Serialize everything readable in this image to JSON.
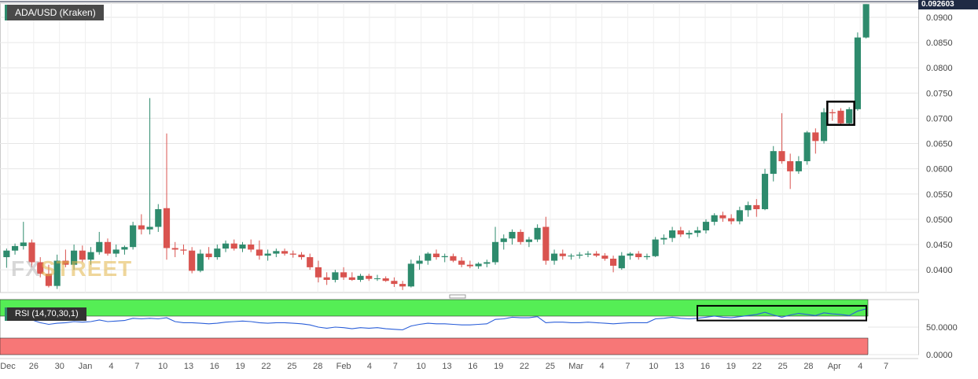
{
  "header": {
    "title": "ADA/USD (Kraken)",
    "last_price": "0.092603"
  },
  "watermark": {
    "part1": "FX",
    "part2": "STREET"
  },
  "rsi": {
    "label": "RSI (14,70,30,1)",
    "ticks": [
      "50.0000",
      "0.0000"
    ]
  },
  "colors": {
    "up": "#2e8b6d",
    "down": "#d9534f",
    "rsi_line": "#2b5fd9",
    "overbought": "#55ee55",
    "oversold": "#f77777",
    "last_price_tag": "#1f2a44"
  },
  "chart_data": [
    {
      "type": "candlestick",
      "title": "ADA/USD (Kraken)",
      "y_ticks": [
        "0.0900",
        "0.0850",
        "0.0800",
        "0.0750",
        "0.0700",
        "0.0650",
        "0.0600",
        "0.0550",
        "0.0500",
        "0.0450",
        "0.0400"
      ],
      "ylim": [
        0.0355,
        0.0928
      ],
      "x_tick_labels": [
        "Dec",
        "26",
        "30",
        "Jan",
        "4",
        "7",
        "10",
        "13",
        "16",
        "19",
        "22",
        "25",
        "28",
        "Feb",
        "4",
        "7",
        "10",
        "13",
        "16",
        "19",
        "22",
        "25",
        "Mar",
        "4",
        "7",
        "10",
        "13",
        "16",
        "19",
        "22",
        "25",
        "28",
        "Apr",
        "4",
        "7"
      ],
      "grid": true,
      "annotation": "box around consolidation candles near 0.0700",
      "candles": [
        {
          "date": "Dec 22",
          "o": 0.0425,
          "h": 0.0442,
          "l": 0.0404,
          "c": 0.0438
        },
        {
          "date": "Dec 23",
          "o": 0.0438,
          "h": 0.0452,
          "l": 0.043,
          "c": 0.0447
        },
        {
          "date": "Dec 24",
          "o": 0.0447,
          "h": 0.0495,
          "l": 0.044,
          "c": 0.0454
        },
        {
          "date": "Dec 25",
          "o": 0.0454,
          "h": 0.046,
          "l": 0.0405,
          "c": 0.0415
        },
        {
          "date": "Dec 26",
          "o": 0.0415,
          "h": 0.0425,
          "l": 0.0385,
          "c": 0.0392
        },
        {
          "date": "Dec 27",
          "o": 0.0392,
          "h": 0.041,
          "l": 0.0365,
          "c": 0.0368
        },
        {
          "date": "Dec 28",
          "o": 0.0368,
          "h": 0.043,
          "l": 0.0362,
          "c": 0.0418
        },
        {
          "date": "Dec 29",
          "o": 0.0418,
          "h": 0.044,
          "l": 0.0405,
          "c": 0.041
        },
        {
          "date": "Dec 30",
          "o": 0.041,
          "h": 0.045,
          "l": 0.04,
          "c": 0.0438
        },
        {
          "date": "Dec 31",
          "o": 0.0438,
          "h": 0.0448,
          "l": 0.0415,
          "c": 0.042
        },
        {
          "date": "Jan 1",
          "o": 0.042,
          "h": 0.0445,
          "l": 0.041,
          "c": 0.0435
        },
        {
          "date": "Jan 2",
          "o": 0.0435,
          "h": 0.0475,
          "l": 0.043,
          "c": 0.0455
        },
        {
          "date": "Jan 3",
          "o": 0.0455,
          "h": 0.0462,
          "l": 0.0428,
          "c": 0.0432
        },
        {
          "date": "Jan 4",
          "o": 0.0432,
          "h": 0.045,
          "l": 0.0425,
          "c": 0.044
        },
        {
          "date": "Jan 5",
          "o": 0.044,
          "h": 0.0448,
          "l": 0.043,
          "c": 0.0445
        },
        {
          "date": "Jan 6",
          "o": 0.0445,
          "h": 0.0495,
          "l": 0.044,
          "c": 0.0488
        },
        {
          "date": "Jan 7",
          "o": 0.0488,
          "h": 0.051,
          "l": 0.047,
          "c": 0.048
        },
        {
          "date": "Jan 8",
          "o": 0.048,
          "h": 0.074,
          "l": 0.047,
          "c": 0.0485
        },
        {
          "date": "Jan 9",
          "o": 0.0485,
          "h": 0.053,
          "l": 0.0475,
          "c": 0.052
        },
        {
          "date": "Jan 10",
          "o": 0.0522,
          "h": 0.067,
          "l": 0.042,
          "c": 0.0443
        },
        {
          "date": "Jan 11",
          "o": 0.0443,
          "h": 0.0455,
          "l": 0.0425,
          "c": 0.044
        },
        {
          "date": "Jan 12",
          "o": 0.044,
          "h": 0.045,
          "l": 0.043,
          "c": 0.0438
        },
        {
          "date": "Jan 13",
          "o": 0.0438,
          "h": 0.0445,
          "l": 0.0393,
          "c": 0.0398
        },
        {
          "date": "Jan 14",
          "o": 0.0398,
          "h": 0.044,
          "l": 0.0395,
          "c": 0.0432
        },
        {
          "date": "Jan 15",
          "o": 0.0432,
          "h": 0.0445,
          "l": 0.042,
          "c": 0.0425
        },
        {
          "date": "Jan 16",
          "o": 0.0425,
          "h": 0.045,
          "l": 0.042,
          "c": 0.0442
        },
        {
          "date": "Jan 17",
          "o": 0.0442,
          "h": 0.0458,
          "l": 0.0435,
          "c": 0.0452
        },
        {
          "date": "Jan 18",
          "o": 0.0452,
          "h": 0.046,
          "l": 0.0438,
          "c": 0.0442
        },
        {
          "date": "Jan 19",
          "o": 0.0442,
          "h": 0.0455,
          "l": 0.0435,
          "c": 0.045
        },
        {
          "date": "Jan 20",
          "o": 0.045,
          "h": 0.046,
          "l": 0.0435,
          "c": 0.044
        },
        {
          "date": "Jan 21",
          "o": 0.044,
          "h": 0.0458,
          "l": 0.042,
          "c": 0.0428
        },
        {
          "date": "Jan 22",
          "o": 0.0428,
          "h": 0.044,
          "l": 0.0418,
          "c": 0.0432
        },
        {
          "date": "Jan 23",
          "o": 0.0432,
          "h": 0.0442,
          "l": 0.0425,
          "c": 0.0437
        },
        {
          "date": "Jan 24",
          "o": 0.0437,
          "h": 0.0442,
          "l": 0.0428,
          "c": 0.0432
        },
        {
          "date": "Jan 25",
          "o": 0.0432,
          "h": 0.0438,
          "l": 0.0424,
          "c": 0.043
        },
        {
          "date": "Jan 26",
          "o": 0.043,
          "h": 0.0435,
          "l": 0.042,
          "c": 0.0425
        },
        {
          "date": "Jan 27",
          "o": 0.0425,
          "h": 0.0432,
          "l": 0.04,
          "c": 0.0405
        },
        {
          "date": "Jan 28",
          "o": 0.0405,
          "h": 0.0418,
          "l": 0.0375,
          "c": 0.0385
        },
        {
          "date": "Jan 29",
          "o": 0.0385,
          "h": 0.0395,
          "l": 0.037,
          "c": 0.038
        },
        {
          "date": "Jan 30",
          "o": 0.038,
          "h": 0.04,
          "l": 0.0375,
          "c": 0.0395
        },
        {
          "date": "Jan 31",
          "o": 0.0395,
          "h": 0.0405,
          "l": 0.038,
          "c": 0.0385
        },
        {
          "date": "Feb 1",
          "o": 0.0385,
          "h": 0.0395,
          "l": 0.0378,
          "c": 0.038
        },
        {
          "date": "Feb 2",
          "o": 0.038,
          "h": 0.0392,
          "l": 0.0376,
          "c": 0.0388
        },
        {
          "date": "Feb 3",
          "o": 0.0388,
          "h": 0.0392,
          "l": 0.0378,
          "c": 0.0382
        },
        {
          "date": "Feb 4",
          "o": 0.0382,
          "h": 0.039,
          "l": 0.0378,
          "c": 0.0383
        },
        {
          "date": "Feb 5",
          "o": 0.0383,
          "h": 0.0387,
          "l": 0.0376,
          "c": 0.0378
        },
        {
          "date": "Feb 6",
          "o": 0.0378,
          "h": 0.0385,
          "l": 0.0366,
          "c": 0.0372
        },
        {
          "date": "Feb 7",
          "o": 0.0372,
          "h": 0.0378,
          "l": 0.036,
          "c": 0.0367
        },
        {
          "date": "Feb 8",
          "o": 0.0367,
          "h": 0.042,
          "l": 0.0365,
          "c": 0.0412
        },
        {
          "date": "Feb 9",
          "o": 0.0412,
          "h": 0.0428,
          "l": 0.04,
          "c": 0.0418
        },
        {
          "date": "Feb 10",
          "o": 0.0418,
          "h": 0.0435,
          "l": 0.041,
          "c": 0.0432
        },
        {
          "date": "Feb 11",
          "o": 0.0432,
          "h": 0.044,
          "l": 0.042,
          "c": 0.0425
        },
        {
          "date": "Feb 12",
          "o": 0.0425,
          "h": 0.0432,
          "l": 0.0415,
          "c": 0.0427
        },
        {
          "date": "Feb 13",
          "o": 0.0427,
          "h": 0.0432,
          "l": 0.0415,
          "c": 0.0418
        },
        {
          "date": "Feb 14",
          "o": 0.0418,
          "h": 0.0425,
          "l": 0.0405,
          "c": 0.041
        },
        {
          "date": "Feb 15",
          "o": 0.041,
          "h": 0.0418,
          "l": 0.0403,
          "c": 0.0407
        },
        {
          "date": "Feb 16",
          "o": 0.0407,
          "h": 0.0415,
          "l": 0.0402,
          "c": 0.0412
        },
        {
          "date": "Feb 17",
          "o": 0.0412,
          "h": 0.042,
          "l": 0.0405,
          "c": 0.0415
        },
        {
          "date": "Feb 18",
          "o": 0.0415,
          "h": 0.0485,
          "l": 0.041,
          "c": 0.0455
        },
        {
          "date": "Feb 19",
          "o": 0.0455,
          "h": 0.047,
          "l": 0.044,
          "c": 0.0462
        },
        {
          "date": "Feb 20",
          "o": 0.0462,
          "h": 0.048,
          "l": 0.045,
          "c": 0.0475
        },
        {
          "date": "Feb 21",
          "o": 0.0475,
          "h": 0.048,
          "l": 0.045,
          "c": 0.0455
        },
        {
          "date": "Feb 22",
          "o": 0.0455,
          "h": 0.0465,
          "l": 0.0445,
          "c": 0.046
        },
        {
          "date": "Feb 23",
          "o": 0.046,
          "h": 0.049,
          "l": 0.0455,
          "c": 0.0483
        },
        {
          "date": "Feb 24",
          "o": 0.0485,
          "h": 0.0505,
          "l": 0.041,
          "c": 0.0418
        },
        {
          "date": "Feb 25",
          "o": 0.0418,
          "h": 0.044,
          "l": 0.041,
          "c": 0.0432
        },
        {
          "date": "Feb 26",
          "o": 0.0432,
          "h": 0.044,
          "l": 0.042,
          "c": 0.0427
        },
        {
          "date": "Feb 27",
          "o": 0.0427,
          "h": 0.0432,
          "l": 0.042,
          "c": 0.0428
        },
        {
          "date": "Feb 28",
          "o": 0.0428,
          "h": 0.0435,
          "l": 0.0422,
          "c": 0.043
        },
        {
          "date": "Mar 1",
          "o": 0.043,
          "h": 0.0437,
          "l": 0.0425,
          "c": 0.0432
        },
        {
          "date": "Mar 2",
          "o": 0.0432,
          "h": 0.0437,
          "l": 0.0425,
          "c": 0.0428
        },
        {
          "date": "Mar 3",
          "o": 0.0428,
          "h": 0.0433,
          "l": 0.0418,
          "c": 0.0422
        },
        {
          "date": "Mar 4",
          "o": 0.0422,
          "h": 0.0428,
          "l": 0.0395,
          "c": 0.0408
        },
        {
          "date": "Mar 5",
          "o": 0.0403,
          "h": 0.0435,
          "l": 0.04,
          "c": 0.0428
        },
        {
          "date": "Mar 6",
          "o": 0.0428,
          "h": 0.0435,
          "l": 0.042,
          "c": 0.0432
        },
        {
          "date": "Mar 7",
          "o": 0.0432,
          "h": 0.0437,
          "l": 0.042,
          "c": 0.0425
        },
        {
          "date": "Mar 8",
          "o": 0.0425,
          "h": 0.0432,
          "l": 0.042,
          "c": 0.0427
        },
        {
          "date": "Mar 9",
          "o": 0.0427,
          "h": 0.0465,
          "l": 0.0425,
          "c": 0.046
        },
        {
          "date": "Mar 10",
          "o": 0.046,
          "h": 0.047,
          "l": 0.045,
          "c": 0.0463
        },
        {
          "date": "Mar 11",
          "o": 0.0463,
          "h": 0.0485,
          "l": 0.0455,
          "c": 0.0478
        },
        {
          "date": "Mar 12",
          "o": 0.0478,
          "h": 0.0485,
          "l": 0.0465,
          "c": 0.047
        },
        {
          "date": "Mar 13",
          "o": 0.047,
          "h": 0.0478,
          "l": 0.0462,
          "c": 0.0473
        },
        {
          "date": "Mar 14",
          "o": 0.0473,
          "h": 0.0485,
          "l": 0.0465,
          "c": 0.0478
        },
        {
          "date": "Mar 15",
          "o": 0.0478,
          "h": 0.05,
          "l": 0.0472,
          "c": 0.0495
        },
        {
          "date": "Mar 16",
          "o": 0.0495,
          "h": 0.0512,
          "l": 0.0488,
          "c": 0.0508
        },
        {
          "date": "Mar 17",
          "o": 0.0508,
          "h": 0.0515,
          "l": 0.0495,
          "c": 0.0502
        },
        {
          "date": "Mar 18",
          "o": 0.0502,
          "h": 0.051,
          "l": 0.049,
          "c": 0.0496
        },
        {
          "date": "Mar 19",
          "o": 0.0496,
          "h": 0.0525,
          "l": 0.049,
          "c": 0.0518
        },
        {
          "date": "Mar 20",
          "o": 0.0518,
          "h": 0.0535,
          "l": 0.0505,
          "c": 0.0528
        },
        {
          "date": "Mar 21",
          "o": 0.0528,
          "h": 0.054,
          "l": 0.0505,
          "c": 0.052
        },
        {
          "date": "Mar 22",
          "o": 0.052,
          "h": 0.06,
          "l": 0.0518,
          "c": 0.059
        },
        {
          "date": "Mar 23",
          "o": 0.059,
          "h": 0.0645,
          "l": 0.0575,
          "c": 0.0635
        },
        {
          "date": "Mar 24",
          "o": 0.0635,
          "h": 0.071,
          "l": 0.061,
          "c": 0.0615
        },
        {
          "date": "Mar 25",
          "o": 0.0615,
          "h": 0.063,
          "l": 0.056,
          "c": 0.0595
        },
        {
          "date": "Mar 26",
          "o": 0.0595,
          "h": 0.0625,
          "l": 0.059,
          "c": 0.0615
        },
        {
          "date": "Mar 27",
          "o": 0.0615,
          "h": 0.0675,
          "l": 0.0608,
          "c": 0.0672
        },
        {
          "date": "Mar 28",
          "o": 0.0672,
          "h": 0.068,
          "l": 0.063,
          "c": 0.0655
        },
        {
          "date": "Mar 29",
          "o": 0.0655,
          "h": 0.072,
          "l": 0.065,
          "c": 0.0712
        },
        {
          "date": "Mar 30",
          "o": 0.0712,
          "h": 0.0718,
          "l": 0.0695,
          "c": 0.071
        },
        {
          "date": "Mar 31",
          "o": 0.0715,
          "h": 0.072,
          "l": 0.0688,
          "c": 0.069
        },
        {
          "date": "Apr 1",
          "o": 0.069,
          "h": 0.0722,
          "l": 0.0688,
          "c": 0.0718
        },
        {
          "date": "Apr 2",
          "o": 0.0718,
          "h": 0.087,
          "l": 0.0715,
          "c": 0.086
        },
        {
          "date": "Apr 3",
          "o": 0.086,
          "h": 0.0926,
          "l": 0.0858,
          "c": 0.0926
        }
      ]
    },
    {
      "type": "line",
      "title": "RSI (14,70,30,1)",
      "y_ticks": [
        "50.0000",
        "0.0000"
      ],
      "ylim": [
        0,
        100
      ],
      "bands": {
        "overbought": 70,
        "oversold": 30
      },
      "annotation": "box around RSI readings in the overbought zone from mid-March to early April",
      "series": [
        {
          "values": [
            64,
            66,
            67,
            63,
            58,
            55,
            57,
            58,
            60,
            59,
            60,
            63,
            60,
            61,
            62,
            66,
            65,
            66,
            65,
            67,
            60,
            58,
            58,
            57,
            56,
            57,
            59,
            60,
            61,
            60,
            58,
            57,
            58,
            58,
            57,
            56,
            54,
            50,
            48,
            50,
            49,
            47,
            49,
            48,
            49,
            47,
            46,
            45,
            52,
            55,
            57,
            56,
            56,
            55,
            54,
            54,
            55,
            56,
            64,
            65,
            68,
            67,
            67,
            69,
            58,
            59,
            59,
            58,
            58,
            59,
            58,
            57,
            56,
            57,
            58,
            58,
            58,
            65,
            66,
            68,
            66,
            65,
            66,
            68,
            70,
            68,
            67,
            69,
            71,
            73,
            77,
            72,
            68,
            72,
            75,
            73,
            71,
            76,
            74,
            73,
            71,
            79,
            83
          ]
        }
      ]
    }
  ]
}
